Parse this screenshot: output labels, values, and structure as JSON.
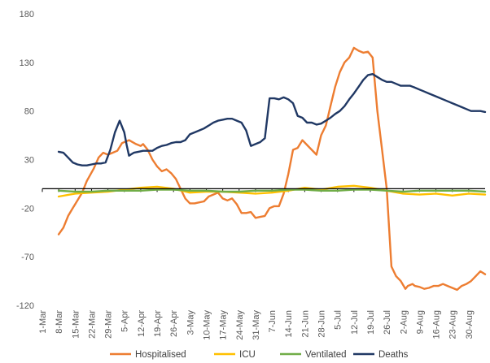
{
  "chart_data": {
    "type": "line",
    "x_ticks": [
      "1-Mar",
      "8-Mar",
      "15-Mar",
      "22-Mar",
      "29-Mar",
      "5-Apr",
      "12-Apr",
      "19-Apr",
      "26-Apr",
      "3-May",
      "10-May",
      "17-May",
      "24-May",
      "31-May",
      "7-Jun",
      "14-Jun",
      "21-Jun",
      "28-Jun",
      "5-Jul",
      "12-Jul",
      "19-Jul",
      "26-Jul",
      "2-Aug",
      "9-Aug",
      "16-Aug",
      "23-Aug",
      "30-Aug"
    ],
    "y_ticks": [
      "180",
      "130",
      "80",
      "30",
      "-20",
      "-70",
      "-120"
    ],
    "ylim": [
      -120,
      180
    ],
    "grid": false,
    "legend_position": "bottom",
    "series": [
      {
        "name": "Hospitalised",
        "color": "#ED7D31",
        "x": [
          7,
          9,
          11,
          13,
          15,
          17,
          19,
          22,
          24,
          26,
          28,
          30,
          32,
          34,
          37,
          40,
          42,
          43,
          45,
          47,
          49,
          51,
          53,
          55,
          57,
          59,
          61,
          63,
          65,
          67,
          69,
          71,
          73,
          75,
          77,
          79,
          81,
          83,
          85,
          87,
          89,
          91,
          93,
          95,
          97,
          99,
          101,
          103,
          105,
          107,
          109,
          111,
          113,
          115,
          117,
          119,
          121,
          122,
          123,
          125,
          127,
          129,
          131,
          133,
          135,
          137,
          139,
          141,
          143,
          145,
          147,
          149,
          151,
          153,
          155,
          156,
          158,
          159,
          161,
          163,
          165,
          167,
          169,
          171,
          173,
          175,
          177,
          179,
          181,
          183,
          185,
          187,
          189
        ],
        "y": [
          -47,
          -40,
          -28,
          -20,
          -12,
          -4,
          8,
          21,
          32,
          37,
          35,
          37,
          39,
          47,
          50,
          46,
          44,
          46,
          40,
          30,
          23,
          18,
          20,
          16,
          10,
          0,
          -10,
          -15,
          -15,
          -14,
          -13,
          -8,
          -6,
          -4,
          -10,
          -12,
          -10,
          -16,
          -25,
          -25,
          -24,
          -30,
          -29,
          -28,
          -20,
          -18,
          -18,
          -5,
          15,
          40,
          42,
          50,
          45,
          40,
          35,
          55,
          65,
          75,
          85,
          105,
          120,
          130,
          135,
          145,
          142,
          140,
          141,
          135,
          80,
          40,
          0,
          -80,
          -90,
          -95,
          -103,
          -100,
          -98,
          -100,
          -101,
          -103,
          -102,
          -100,
          -100,
          -98,
          -100,
          -102,
          -104,
          -100,
          -98,
          -95,
          -90,
          -85,
          -88
        ]
      },
      {
        "name": "ICU",
        "color": "#FFC000",
        "x": [
          7,
          14,
          21,
          28,
          35,
          42,
          49,
          56,
          63,
          70,
          77,
          84,
          91,
          98,
          105,
          112,
          119,
          126,
          133,
          140,
          147,
          154,
          161,
          168,
          175,
          182,
          189
        ],
        "y": [
          -8,
          -5,
          -4,
          -3,
          -1,
          1,
          2,
          0,
          -4,
          -3,
          -3,
          -4,
          -5,
          -4,
          -2,
          1,
          -1,
          2,
          3,
          1,
          -2,
          -5,
          -6,
          -5,
          -7,
          -5,
          -6
        ]
      },
      {
        "name": "Ventilated",
        "color": "#70AD47",
        "x": [
          7,
          14,
          21,
          28,
          35,
          42,
          49,
          56,
          63,
          70,
          77,
          84,
          91,
          98,
          105,
          112,
          119,
          126,
          133,
          140,
          147,
          154,
          161,
          168,
          175,
          182,
          189
        ],
        "y": [
          -2,
          -3,
          -3,
          -2,
          -2,
          -2,
          -1,
          -1,
          -2,
          -2,
          -3,
          -3,
          -2,
          -2,
          -1,
          -1,
          -2,
          -2,
          -1,
          -1,
          -2,
          -3,
          -2,
          -2,
          -2,
          -2,
          -3
        ]
      },
      {
        "name": "Deaths",
        "color": "#203864",
        "x": [
          7,
          9,
          11,
          13,
          15,
          17,
          19,
          21,
          23,
          25,
          27,
          29,
          31,
          33,
          35,
          36,
          37,
          39,
          41,
          43,
          45,
          47,
          49,
          51,
          53,
          55,
          57,
          59,
          61,
          63,
          65,
          67,
          69,
          71,
          73,
          75,
          77,
          79,
          81,
          83,
          85,
          87,
          89,
          91,
          93,
          95,
          97,
          99,
          101,
          103,
          105,
          107,
          109,
          111,
          113,
          115,
          117,
          119,
          121,
          123,
          125,
          127,
          129,
          131,
          133,
          135,
          137,
          139,
          141,
          143,
          145,
          147,
          149,
          151,
          153,
          155,
          157,
          159,
          161,
          163,
          165,
          167,
          169,
          171,
          173,
          175,
          177,
          179,
          181,
          183,
          185,
          187,
          189
        ],
        "y": [
          38,
          37,
          32,
          27,
          25,
          24,
          24,
          25,
          26,
          26,
          27,
          40,
          58,
          70,
          58,
          45,
          34,
          37,
          38,
          39,
          39,
          39,
          42,
          44,
          45,
          47,
          48,
          48,
          50,
          56,
          58,
          60,
          62,
          65,
          68,
          70,
          71,
          72,
          72,
          70,
          68,
          60,
          44,
          46,
          48,
          52,
          93,
          93,
          92,
          94,
          92,
          88,
          75,
          73,
          68,
          68,
          66,
          67,
          70,
          73,
          77,
          80,
          85,
          92,
          98,
          105,
          112,
          117,
          118,
          115,
          112,
          110,
          110,
          108,
          106,
          106,
          106,
          104,
          102,
          100,
          98,
          96,
          94,
          92,
          90,
          88,
          86,
          84,
          82,
          80,
          80,
          80,
          79
        ]
      }
    ]
  }
}
